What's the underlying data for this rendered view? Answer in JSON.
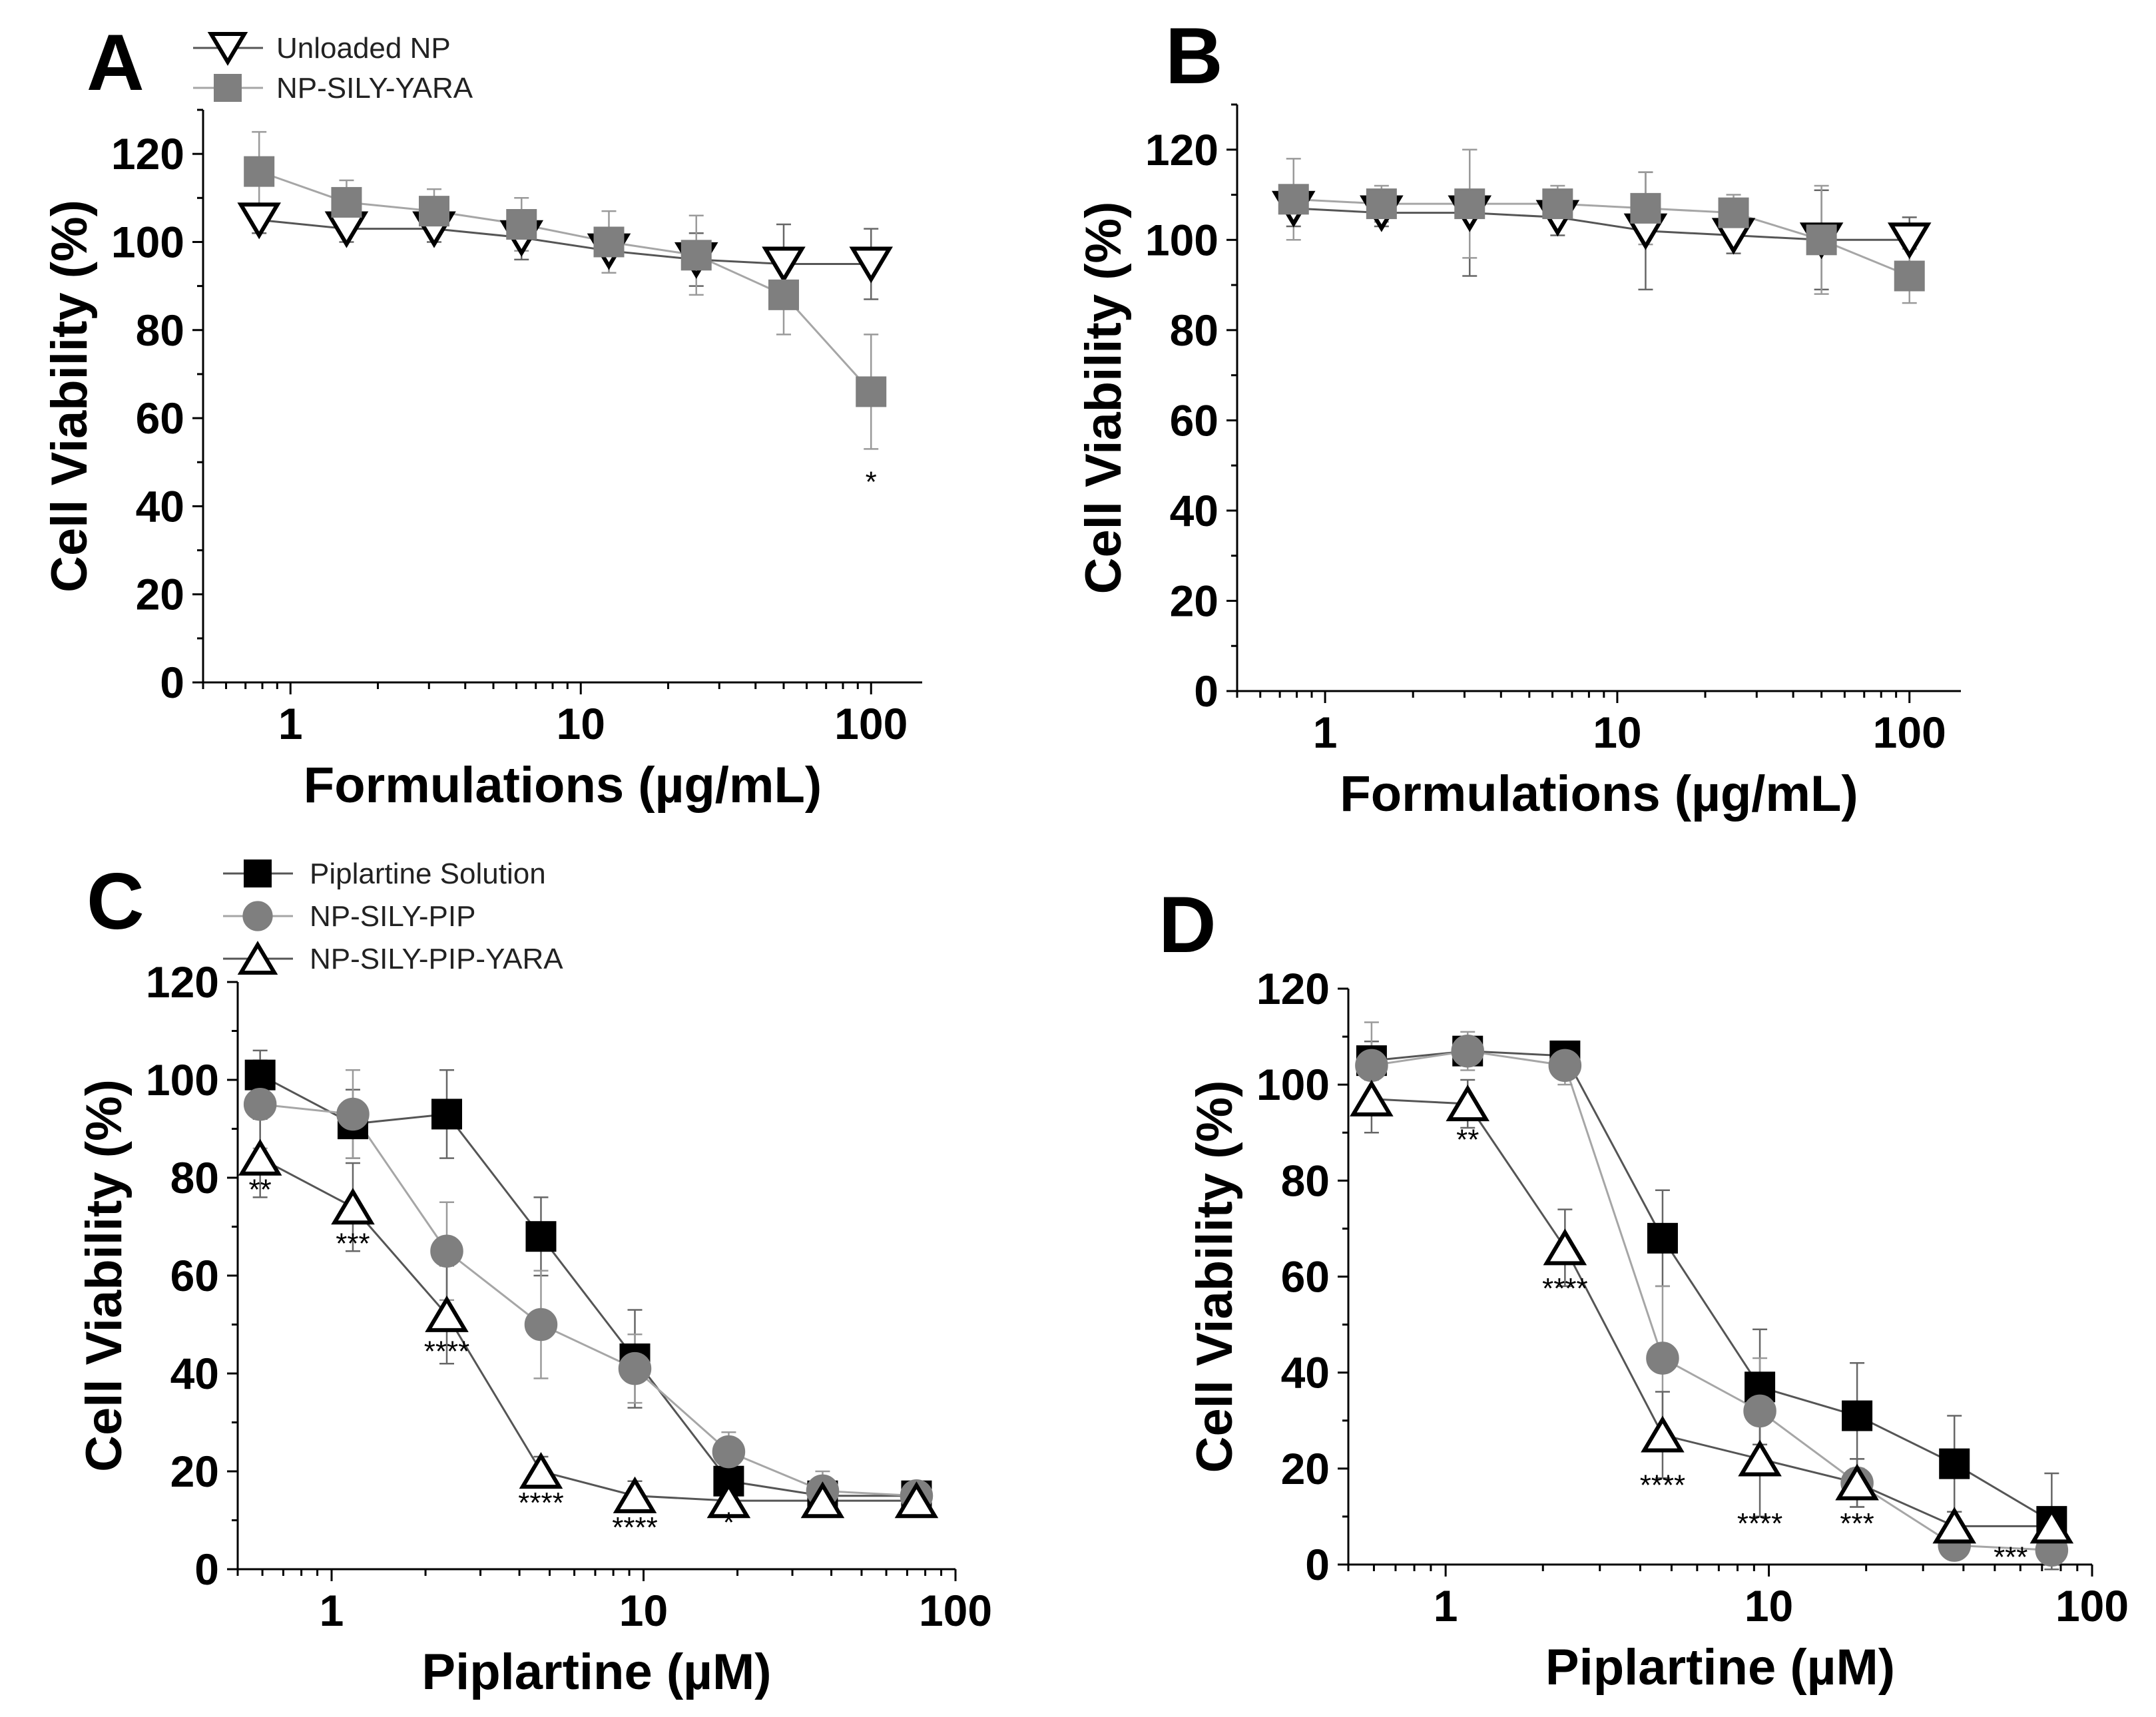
{
  "colors": {
    "black": "#000000",
    "gray": "#7f7f7f",
    "lightgray": "#a6a6a6",
    "white": "#ffffff"
  },
  "chart_data": [
    {
      "type": "line",
      "panel": "A",
      "title": "",
      "xlabel": "Formulations (µg/mL)",
      "ylabel": "Cell Viability (%)",
      "xscale": "log",
      "xlim": [
        0.5,
        150
      ],
      "ylim": [
        0,
        130
      ],
      "xticks": [
        "1",
        "10",
        "100"
      ],
      "yticks": [
        "0",
        "20",
        "40",
        "60",
        "80",
        "100",
        "120"
      ],
      "legend_position": "top-left",
      "x": [
        0.78,
        1.56,
        3.125,
        6.25,
        12.5,
        25,
        50,
        100
      ],
      "series": [
        {
          "name": "Unloaded NP",
          "marker": "triangle-down-open",
          "color": "#000000",
          "values": [
            105,
            103,
            103,
            101,
            98,
            96,
            95,
            95
          ],
          "errors": [
            3,
            3,
            3,
            5,
            5,
            6,
            9,
            8
          ]
        },
        {
          "name": "NP-SILY-YARA",
          "marker": "square",
          "color": "#7f7f7f",
          "values": [
            116,
            109,
            107,
            104,
            100,
            97,
            88,
            66
          ],
          "errors": [
            9,
            5,
            5,
            6,
            7,
            9,
            9,
            13
          ]
        }
      ],
      "annotations": [
        {
          "x": 100,
          "text": "*",
          "near": 46
        }
      ]
    },
    {
      "type": "line",
      "panel": "B",
      "title": "",
      "xlabel": "Formulations (µg/mL)",
      "ylabel": "Cell Viability (%)",
      "xscale": "log",
      "xlim": [
        0.5,
        150
      ],
      "ylim": [
        0,
        130
      ],
      "xticks": [
        "1",
        "10",
        "100"
      ],
      "yticks": [
        "0",
        "20",
        "40",
        "60",
        "80",
        "100",
        "120"
      ],
      "x": [
        0.78,
        1.56,
        3.125,
        6.25,
        12.5,
        25,
        50,
        100
      ],
      "series": [
        {
          "name": "Unloaded NP",
          "marker": "triangle-down-open",
          "color": "#000000",
          "values": [
            107,
            106,
            106,
            105,
            102,
            101,
            100,
            100
          ],
          "errors": [
            4,
            3,
            14,
            4,
            13,
            4,
            11,
            5
          ]
        },
        {
          "name": "NP-SILY-YARA",
          "marker": "square",
          "color": "#7f7f7f",
          "values": [
            109,
            108,
            108,
            108,
            107,
            106,
            100,
            92
          ],
          "errors": [
            9,
            4,
            12,
            4,
            8,
            4,
            12,
            6
          ]
        }
      ]
    },
    {
      "type": "line",
      "panel": "C",
      "title": "",
      "xlabel": "Piplartine (µM)",
      "ylabel": "Cell Viability (%)",
      "xscale": "log",
      "xlim": [
        0.5,
        100
      ],
      "ylim": [
        0,
        120
      ],
      "xticks": [
        "1",
        "10",
        "100"
      ],
      "yticks": [
        "0",
        "20",
        "40",
        "60",
        "80",
        "100",
        "120"
      ],
      "legend_position": "top-left",
      "x": [
        0.59,
        1.17,
        2.34,
        4.69,
        9.38,
        18.75,
        37.5,
        75
      ],
      "series": [
        {
          "name": "Piplartine Solution",
          "marker": "square",
          "color": "#000000",
          "values": [
            101,
            91,
            93,
            68,
            43,
            18,
            15,
            15
          ],
          "errors": [
            5,
            7,
            9,
            8,
            10,
            4,
            3,
            3
          ]
        },
        {
          "name": "NP-SILY-PIP",
          "marker": "circle",
          "color": "#7f7f7f",
          "values": [
            95,
            93,
            65,
            50,
            41,
            24,
            16,
            15
          ],
          "errors": [
            9,
            9,
            10,
            11,
            7,
            4,
            4,
            3
          ]
        },
        {
          "name": "NP-SILY-PIP-YARA",
          "marker": "triangle-up-open",
          "color": "#000000",
          "values": [
            84,
            74,
            52,
            20,
            15,
            14,
            14,
            14
          ],
          "errors": [
            8,
            9,
            10,
            3,
            3,
            3,
            3,
            3
          ]
        }
      ],
      "annotations": [
        {
          "x": 0.59,
          "text": "**",
          "near": 78
        },
        {
          "x": 1.17,
          "text": "***",
          "near": 67
        },
        {
          "x": 2.34,
          "text": "****",
          "near": 45
        },
        {
          "x": 4.69,
          "text": "****",
          "near": 14
        },
        {
          "x": 9.38,
          "text": "****",
          "near": 9
        },
        {
          "x": 18.75,
          "text": "*",
          "near": 10
        }
      ]
    },
    {
      "type": "line",
      "panel": "D",
      "title": "",
      "xlabel": "Piplartine (µM)",
      "ylabel": "Cell Viability (%)",
      "xscale": "log",
      "xlim": [
        0.5,
        100
      ],
      "ylim": [
        0,
        120
      ],
      "xticks": [
        "1",
        "10",
        "100"
      ],
      "yticks": [
        "0",
        "20",
        "40",
        "60",
        "80",
        "100",
        "120"
      ],
      "x": [
        0.59,
        1.17,
        2.34,
        4.69,
        9.38,
        18.75,
        37.5,
        75
      ],
      "series": [
        {
          "name": "Piplartine Solution",
          "marker": "square",
          "color": "#000000",
          "values": [
            105,
            107,
            106,
            68,
            37,
            31,
            21,
            9
          ],
          "errors": [
            4,
            3,
            3,
            10,
            12,
            11,
            10,
            10
          ]
        },
        {
          "name": "NP-SILY-PIP",
          "marker": "circle",
          "color": "#7f7f7f",
          "values": [
            104,
            107,
            104,
            43,
            32,
            17,
            4,
            3
          ],
          "errors": [
            9,
            4,
            4,
            15,
            11,
            5,
            2,
            2
          ]
        },
        {
          "name": "NP-SILY-PIP-YARA",
          "marker": "triangle-up-open",
          "color": "#000000",
          "values": [
            97,
            96,
            66,
            27,
            22,
            17,
            8,
            8
          ],
          "errors": [
            7,
            5,
            8,
            9,
            12,
            5,
            3,
            3
          ]
        }
      ],
      "annotations": [
        {
          "x": 1.17,
          "text": "**",
          "near": 89
        },
        {
          "x": 2.34,
          "text": "****",
          "near": 58
        },
        {
          "x": 4.69,
          "text": "****",
          "near": 17
        },
        {
          "x": 9.38,
          "text": "****",
          "near": 9
        },
        {
          "x": 18.75,
          "text": "***",
          "near": 9
        },
        {
          "x": 56,
          "text": "***",
          "near": 2
        }
      ]
    }
  ]
}
